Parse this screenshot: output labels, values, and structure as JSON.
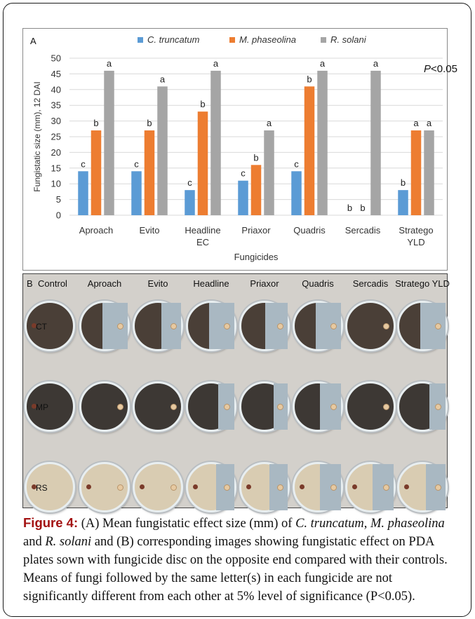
{
  "chart_data": {
    "type": "bar",
    "panel_label": "A",
    "categories": [
      "Aproach",
      "Evito",
      "Headline EC",
      "Priaxor",
      "Quadris",
      "Sercadis",
      "Stratego YLD"
    ],
    "series": [
      {
        "name": "C. truncatum",
        "color": "#5b9bd5",
        "values": [
          14,
          14,
          8,
          11,
          14,
          0,
          8
        ],
        "letters": [
          "c",
          "c",
          "c",
          "c",
          "c",
          "b",
          "b"
        ]
      },
      {
        "name": "M. phaseolina",
        "color": "#ed7d31",
        "values": [
          27,
          27,
          33,
          16,
          41,
          0,
          27
        ],
        "letters": [
          "b",
          "b",
          "b",
          "b",
          "b",
          "b",
          "a"
        ]
      },
      {
        "name": "R. solani",
        "color": "#a5a5a5",
        "values": [
          46,
          41,
          46,
          27,
          46,
          46,
          27
        ],
        "letters": [
          "a",
          "a",
          "a",
          "a",
          "a",
          "a",
          "a"
        ]
      }
    ],
    "xlabel": "Fungicides",
    "ylabel": "Fungistatic size (mm), 12 DAI",
    "ylim": [
      0,
      50
    ],
    "yticks": [
      0,
      5,
      10,
      15,
      20,
      25,
      30,
      35,
      40,
      45,
      50
    ],
    "grid": true,
    "legend_position": "top",
    "annotation": {
      "italic": "P",
      "rest": "<0.05"
    }
  },
  "photo_panel": {
    "panel_label": "B",
    "columns": [
      "Control",
      "Aproach",
      "Evito",
      "Headline",
      "Priaxor",
      "Quadris",
      "Sercadis",
      "Stratego YLD"
    ],
    "rows": [
      {
        "label": "CT",
        "mycelium_color": "#4a3f37",
        "inhibition": [
          0,
          0.55,
          0.42,
          0.55,
          0.48,
          0.55,
          0,
          0.55
        ]
      },
      {
        "label": "MP",
        "mycelium_color": "#3d3834",
        "inhibition": [
          0,
          0,
          0,
          0.35,
          0.3,
          0.45,
          0,
          0.35
        ]
      },
      {
        "label": "RS",
        "mycelium_color": "#d9ccb2",
        "inhibition": [
          0,
          0,
          0,
          0.4,
          0.4,
          0.45,
          0.45,
          0.42
        ]
      }
    ]
  },
  "caption": {
    "label": "Figure 4:",
    "p1": " (A) Mean fungistatic effect size (mm) of ",
    "sp1": "C. truncatum",
    "p2": ", ",
    "sp2": "M. phaseolina",
    "p3": " and ",
    "sp3": "R. solani",
    "p4": " and (B) corresponding images showing fungistatic effect on PDA plates sown with fungicide disc on the opposite end compared with their controls. Means of fungi followed by the same letter(s) in each fungicide are not significantly different from each other at 5% level of significance (P<0.05)."
  }
}
